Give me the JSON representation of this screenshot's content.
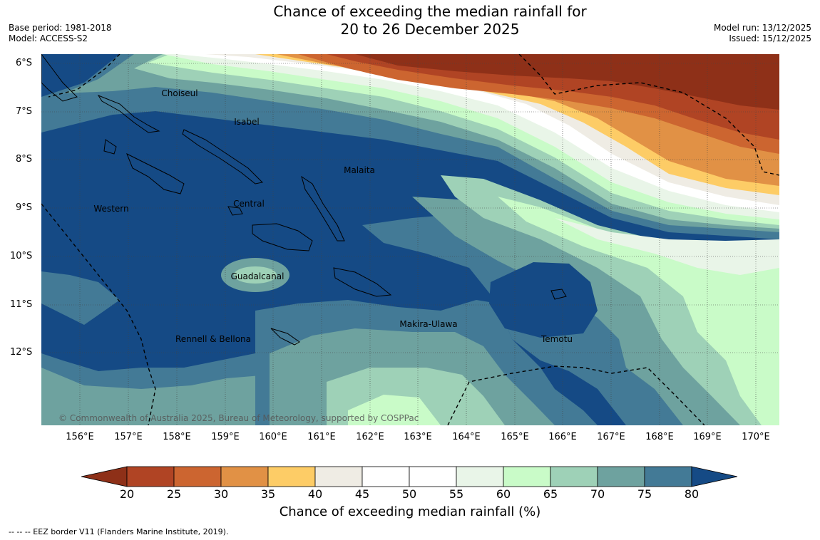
{
  "title": {
    "line1": "Chance of exceeding the median rainfall for",
    "line2": "20 to 26 December 2025"
  },
  "meta": {
    "base_period": "Base period: 1981-2018",
    "model": "Model: ACCESS-S2",
    "model_run": "Model run: 13/12/2025",
    "issued": "Issued: 15/12/2025"
  },
  "lat_labels": [
    "6°S",
    "7°S",
    "8°S",
    "9°S",
    "10°S",
    "11°S",
    "12°S"
  ],
  "lon_labels": [
    "156°E",
    "157°E",
    "158°E",
    "159°E",
    "160°E",
    "161°E",
    "162°E",
    "163°E",
    "164°E",
    "165°E",
    "166°E",
    "167°E",
    "168°E",
    "169°E",
    "170°E"
  ],
  "regions": {
    "choiseul": "Choiseul",
    "isabel": "Isabel",
    "malaita": "Malaita",
    "western": "Western",
    "central": "Central",
    "guadalcanal": "Guadalcanal",
    "makira": "Makira-Ulawa",
    "temotu": "Temotu",
    "rennell": "Rennell & Bellona"
  },
  "copyright": "© Commonwealth of Australia 2025, Bureau of Meteorology, supported by COSPPac",
  "colorbar": {
    "label": "Chance of exceeding median rainfall (%)",
    "ticks": [
      "20",
      "25",
      "30",
      "35",
      "40",
      "45",
      "50",
      "55",
      "60",
      "65",
      "70",
      "75",
      "80"
    ],
    "under_color": "#8e3018",
    "over_color": "#154a85",
    "colors": [
      "#b04424",
      "#cc6530",
      "#e19145",
      "#fdcc66",
      "#efece4",
      "#ffffff",
      "#ffffff",
      "#e9f5e8",
      "#c9fbc8",
      "#9ed1b7",
      "#6ea29f",
      "#437a96"
    ]
  },
  "footer": "--  --  -- EEZ border V11 (Flanders Marine Institute, 2019)."
}
